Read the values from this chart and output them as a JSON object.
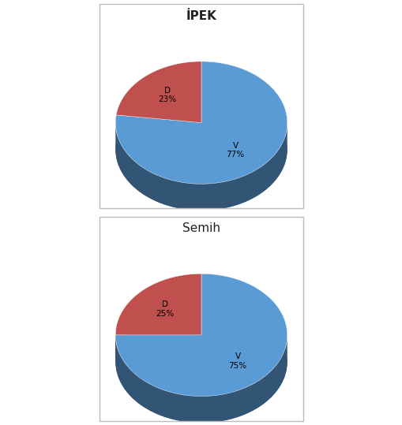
{
  "charts": [
    {
      "title": "İPEK",
      "title_bold": true,
      "slices": [
        {
          "label": "V",
          "pct": 77,
          "color": "#5b9bd5"
        },
        {
          "label": "D",
          "pct": 23,
          "color": "#c0504d"
        }
      ]
    },
    {
      "title": "Semih",
      "title_bold": false,
      "slices": [
        {
          "label": "V",
          "pct": 75,
          "color": "#5b9bd5"
        },
        {
          "label": "D",
          "pct": 25,
          "color": "#c0504d"
        }
      ]
    }
  ],
  "bg_color": "#ffffff",
  "box_edge_color": "#bbbbbb",
  "label_fontsize": 7.5,
  "title_fontsize": 11,
  "side_color_blue": "#2e609e",
  "side_color_red": "#8b2020"
}
